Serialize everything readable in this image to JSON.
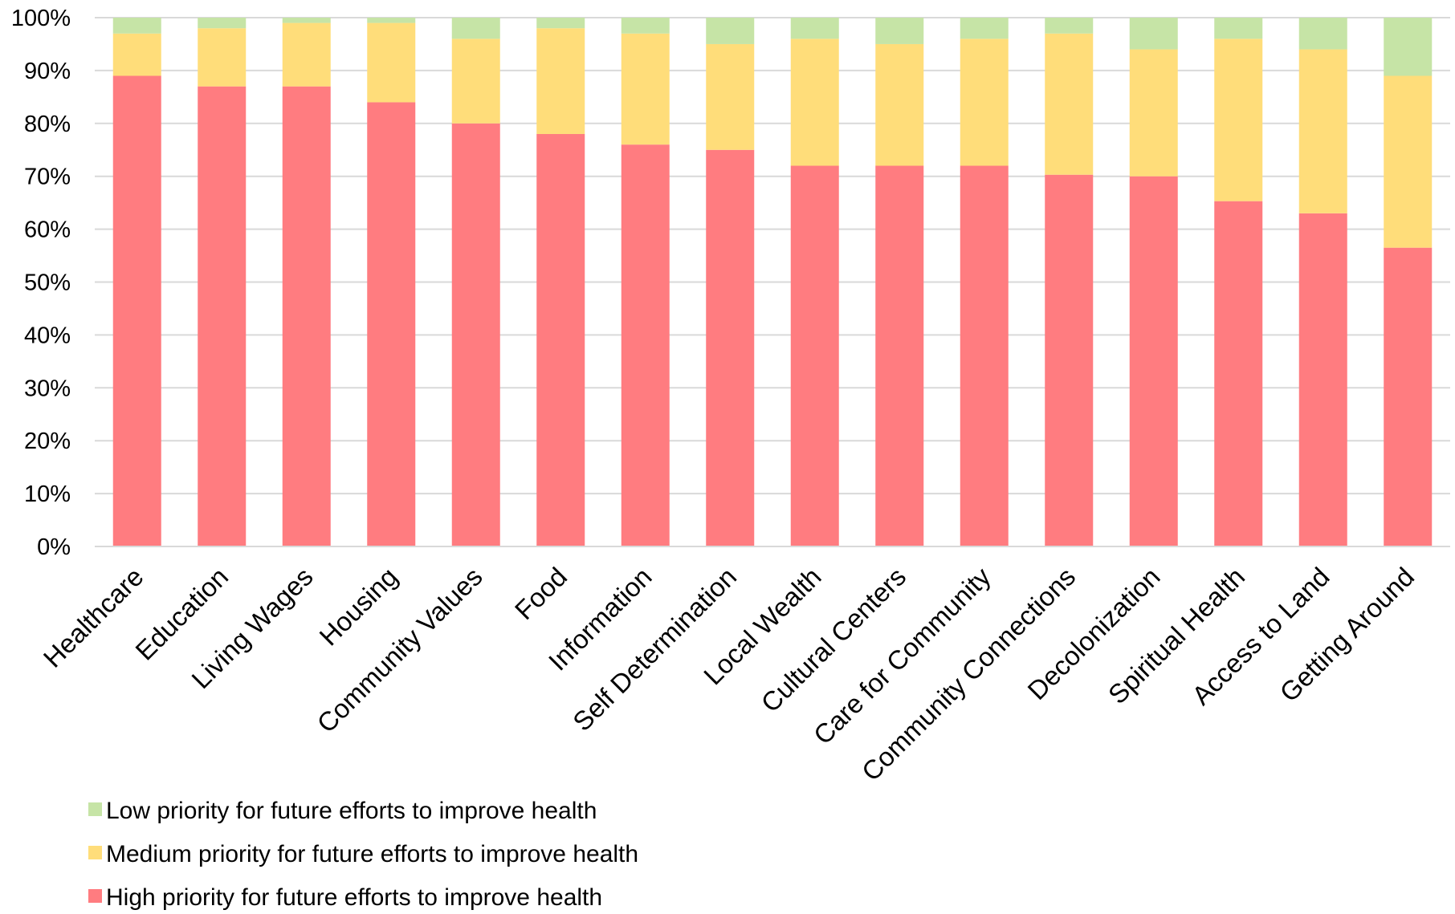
{
  "chart_data": {
    "type": "bar",
    "stacked": true,
    "percent_stacked": true,
    "categories": [
      "Healthcare",
      "Education",
      "Living Wages",
      "Housing",
      "Community Values",
      "Food",
      "Information",
      "Self Determination",
      "Local Wealth",
      "Cultural Centers",
      "Care for Community",
      "Community Connections",
      "Decolonization",
      "Spiritual Health",
      "Access to Land",
      "Getting Around"
    ],
    "series": [
      {
        "name": "High priority for future efforts to improve health",
        "color": "#FF7C80",
        "values": [
          89,
          87,
          87,
          84,
          80,
          78,
          76,
          75,
          72,
          72,
          72,
          70.3,
          70,
          65.3,
          63,
          56.5
        ]
      },
      {
        "name": "Medium priority for future efforts to improve health",
        "color": "#FFDD7A",
        "values": [
          8,
          11,
          12,
          15,
          16,
          20,
          21,
          20,
          24,
          23,
          24,
          26.7,
          24,
          30.7,
          31,
          32.5
        ]
      },
      {
        "name": "Low priority for future efforts to improve health",
        "color": "#C6E4A6",
        "values": [
          3,
          2,
          1,
          1,
          4,
          2,
          3,
          5,
          4,
          5,
          4,
          3,
          6,
          4,
          6,
          11
        ]
      }
    ],
    "yticks": [
      "0%",
      "10%",
      "20%",
      "30%",
      "40%",
      "50%",
      "60%",
      "70%",
      "80%",
      "90%",
      "100%"
    ],
    "ylim": [
      0,
      100
    ],
    "grid": true,
    "legend_position": "bottom-left",
    "legend_order": [
      2,
      1,
      0
    ]
  }
}
